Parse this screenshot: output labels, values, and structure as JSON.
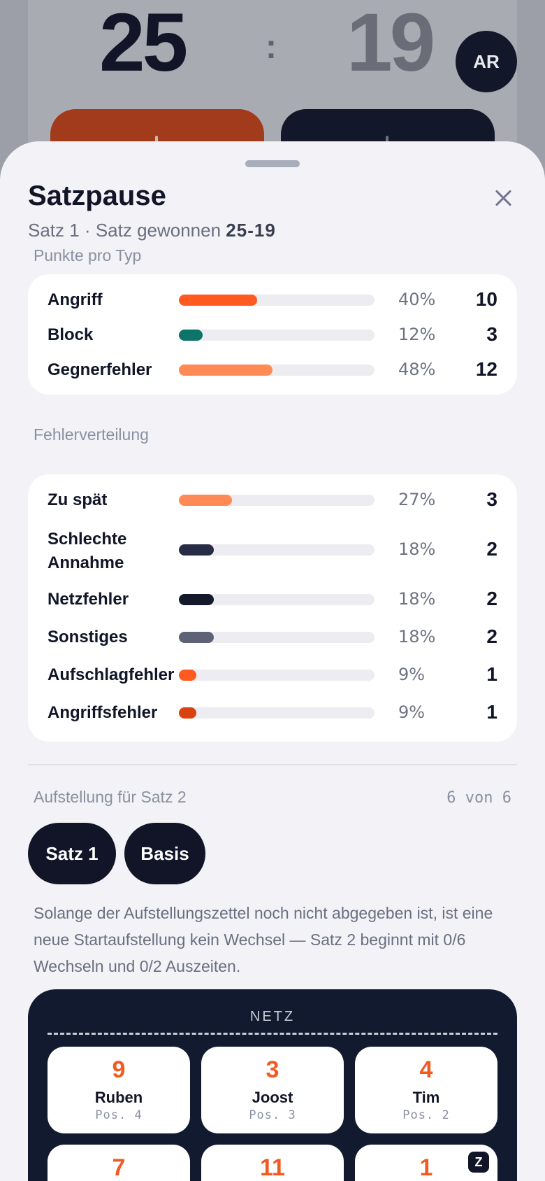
{
  "scoreboard": {
    "home_score": "25",
    "separator": ":",
    "away_score": "19",
    "avatar_initials": "AR"
  },
  "sheet": {
    "title": "Satzpause",
    "subtitle_prefix": "Satz 1 · Satz gewonnen",
    "subtitle_score": "25-19"
  },
  "points_by_type": {
    "label": "Punkte pro Typ",
    "rows": [
      {
        "label": "Angriff",
        "percent_text": "40%",
        "count": "10",
        "fraction": 0.4,
        "color": "#ff5a1f"
      },
      {
        "label": "Block",
        "percent_text": "12%",
        "count": "3",
        "fraction": 0.12,
        "color": "#0d7468"
      },
      {
        "label": "Gegnerfehler",
        "percent_text": "48%",
        "count": "12",
        "fraction": 0.48,
        "color": "#ff8a55"
      }
    ]
  },
  "error_distribution": {
    "label": "Fehlerverteilung",
    "rows": [
      {
        "label": "Zu spät",
        "percent_text": "27%",
        "count": "3",
        "fraction": 0.27,
        "color": "#ff8a55"
      },
      {
        "label": "Schlechte Annahme",
        "percent_text": "18%",
        "count": "2",
        "fraction": 0.18,
        "color": "#262c44"
      },
      {
        "label": "Netzfehler",
        "percent_text": "18%",
        "count": "2",
        "fraction": 0.18,
        "color": "#141a2c"
      },
      {
        "label": "Sonstiges",
        "percent_text": "18%",
        "count": "2",
        "fraction": 0.18,
        "color": "#5d6274"
      },
      {
        "label": "Aufschlagfehler",
        "percent_text": "9%",
        "count": "1",
        "fraction": 0.09,
        "color": "#ff5a1f"
      },
      {
        "label": "Angriffsfehler",
        "percent_text": "9%",
        "count": "1",
        "fraction": 0.09,
        "color": "#d9420f"
      }
    ]
  },
  "lineup": {
    "label": "Aufstellung für Satz 2",
    "count_text": "6 von 6",
    "pills": [
      "Satz 1",
      "Basis"
    ],
    "info_text": "Solange der Aufstellungszettel noch nicht abgegeben ist, ist eine neue Startaufstellung kein Wechsel — Satz 2 beginnt mit 0/6 Wechseln und 0/2 Auszeiten.",
    "net_label": "NETZ",
    "front_row": [
      {
        "number": "9",
        "name": "Ruben",
        "position": "Pos. 4"
      },
      {
        "number": "3",
        "name": "Joost",
        "position": "Pos. 3"
      },
      {
        "number": "4",
        "name": "Tim",
        "position": "Pos. 2"
      }
    ],
    "back_row": [
      {
        "number": "7"
      },
      {
        "number": "11"
      },
      {
        "number": "1",
        "badge": "Z"
      }
    ]
  }
}
